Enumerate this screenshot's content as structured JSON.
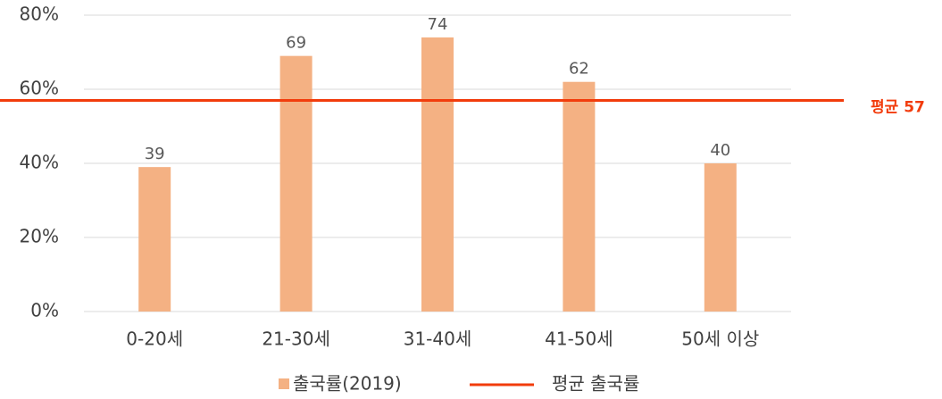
{
  "chart_data": {
    "type": "bar",
    "categories": [
      "0-20세",
      "21-30세",
      "31-40세",
      "41-50세",
      "50세 이상"
    ],
    "series": [
      {
        "name": "출국률(2019)",
        "color": "#f4b183",
        "values": [
          39,
          69,
          74,
          62,
          40
        ]
      }
    ],
    "average": {
      "name": "평균 출국률",
      "label": "평균 57",
      "value": 57,
      "color": "#f23c0c"
    },
    "ylim": [
      0,
      80
    ],
    "yticks": [
      {
        "value": 0,
        "label": "0%"
      },
      {
        "value": 20,
        "label": "20%"
      },
      {
        "value": 40,
        "label": "40%"
      },
      {
        "value": 60,
        "label": "60%"
      },
      {
        "value": 80,
        "label": "80%"
      }
    ],
    "grid": true
  }
}
